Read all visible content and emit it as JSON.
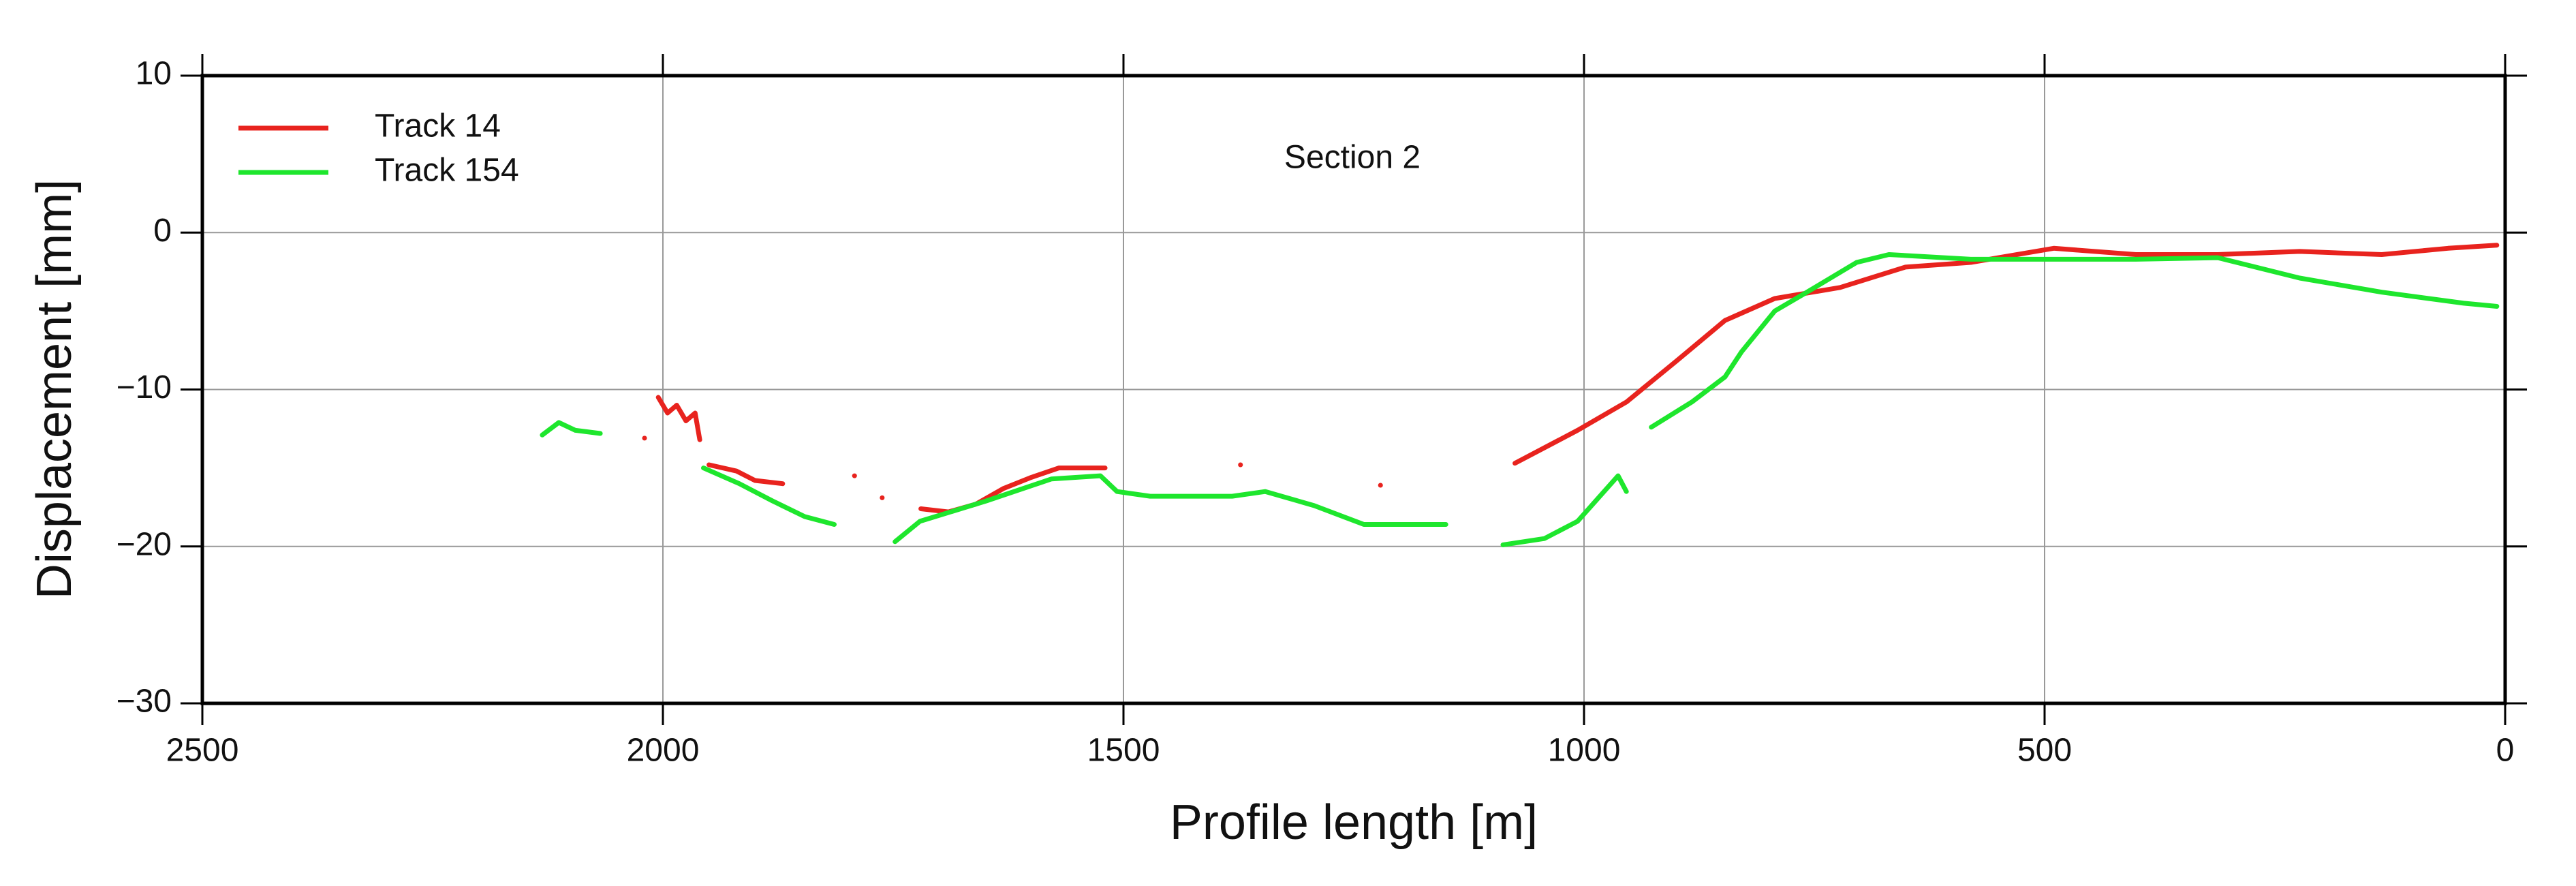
{
  "chart_data": {
    "type": "line",
    "annotation": "Section 2",
    "xlabel": "Profile length [m]",
    "ylabel": "Displacement [mm]",
    "xlim": [
      2500,
      0
    ],
    "xticks": [
      2500,
      2000,
      1500,
      1000,
      500,
      0
    ],
    "ylim": [
      -30,
      10
    ],
    "yticks": [
      {
        "value": -30,
        "label": "−30"
      },
      {
        "value": -20,
        "label": "−20"
      },
      {
        "value": -10,
        "label": "−10"
      },
      0,
      10
    ],
    "grid": true,
    "legend": "upper-left",
    "series": [
      {
        "name": "Track 14",
        "color": "#e8231e",
        "x": [
          2020,
          null,
          2005,
          1995,
          1985,
          1975,
          1965,
          1960,
          null,
          1950,
          1920,
          1900,
          1870,
          null,
          1792,
          null,
          1762,
          null,
          1720,
          1690,
          1660,
          1630,
          1600,
          1570,
          1540,
          1520,
          null,
          1373,
          null,
          1221,
          null,
          1075,
          1007,
          954,
          900,
          847,
          793,
          722,
          651,
          580,
          490,
          401,
          312,
          223,
          134,
          62,
          9
        ],
        "values": [
          -13.1,
          null,
          -10.5,
          -11.5,
          -11,
          -12,
          -11.5,
          -13.2,
          null,
          -14.8,
          -15.2,
          -15.8,
          -16.0,
          null,
          -15.5,
          null,
          -16.9,
          null,
          -17.6,
          -17.8,
          -17.3,
          -16.3,
          -15.6,
          -15.0,
          -15.0,
          -15.0,
          null,
          -14.8,
          null,
          -16.1,
          null,
          -14.7,
          -12.6,
          -10.8,
          -8.2,
          -5.6,
          -4.2,
          -3.5,
          -2.2,
          -1.9,
          -1.0,
          -1.4,
          -1.4,
          -1.2,
          -1.4,
          -1.0,
          -0.8
        ]
      },
      {
        "name": "Track 154",
        "color": "#1ee62d",
        "x": [
          2131,
          2113,
          2095,
          2068,
          null,
          1956,
          1917,
          1881,
          1846,
          1814,
          null,
          1748,
          1721,
          1649,
          1578,
          1525,
          1507,
          1471,
          1382,
          1346,
          1293,
          1239,
          1150,
          null,
          1088,
          1043,
          1007,
          963,
          954,
          null,
          927,
          883,
          847,
          829,
          793,
          758,
          704,
          669,
          580,
          490,
          401,
          312,
          223,
          134,
          45,
          9
        ],
        "values": [
          -12.9,
          -12.1,
          -12.6,
          -12.8,
          null,
          -15.0,
          -16.0,
          -17.1,
          -18.1,
          -18.6,
          null,
          -19.7,
          -18.4,
          -17.1,
          -15.7,
          -15.5,
          -16.5,
          -16.8,
          -16.8,
          -16.5,
          -17.4,
          -18.6,
          -18.6,
          null,
          -19.9,
          -19.5,
          -18.4,
          -15.5,
          -16.5,
          null,
          -12.4,
          -10.8,
          -9.2,
          -7.6,
          -5.0,
          -3.8,
          -1.9,
          -1.4,
          -1.7,
          -1.7,
          -1.7,
          -1.6,
          -2.9,
          -3.8,
          -4.5,
          -4.7
        ]
      }
    ]
  }
}
